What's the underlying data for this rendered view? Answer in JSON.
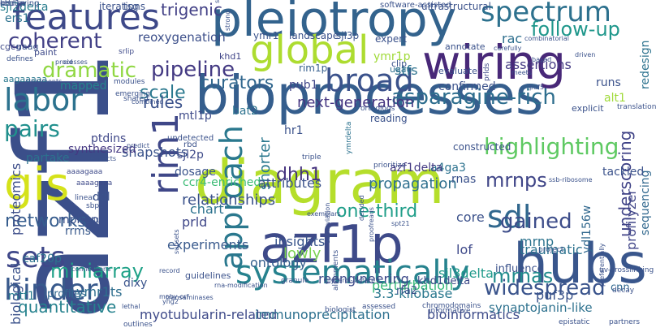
{
  "words": [
    {
      "text": "azf1",
      "color": "#3b4f8a",
      "vertical": true
    },
    {
      "text": "bioprocesses",
      "color": "#355e8d",
      "vertical": false
    },
    {
      "text": "diagram",
      "color": "#b5de2b",
      "vertical": false
    },
    {
      "text": "wiring",
      "color": "#482878",
      "vertical": false
    },
    {
      "text": "pleiotropy",
      "color": "#33638d",
      "vertical": false
    },
    {
      "text": "hubs",
      "color": "#39568c",
      "vertical": false
    },
    {
      "text": "azf1p",
      "color": "#3e4a89",
      "vertical": false
    },
    {
      "text": "systematically",
      "color": "#26828e",
      "vertical": false
    },
    {
      "text": "gis",
      "color": "#d5e21a",
      "vertical": false
    },
    {
      "text": "global",
      "color": "#addc30",
      "vertical": false
    },
    {
      "text": "features",
      "color": "#3e4989",
      "vertical": false
    },
    {
      "text": "spectrum",
      "color": "#2d718e",
      "vertical": false
    },
    {
      "text": "sets",
      "color": "#3f4889",
      "vertical": false
    },
    {
      "text": "broad",
      "color": "#3b528b",
      "vertical": false
    },
    {
      "text": "hinder",
      "color": "#38598c",
      "vertical": false
    },
    {
      "text": "labor",
      "color": "#2c728e",
      "vertical": false
    },
    {
      "text": "sdl",
      "color": "#31688e",
      "vertical": false
    },
    {
      "text": "approach",
      "color": "#2a788e",
      "vertical": true
    },
    {
      "text": "rim1",
      "color": "#3f4788",
      "vertical": true
    },
    {
      "text": "pairs",
      "color": "#21908d",
      "vertical": false
    },
    {
      "text": "coherent",
      "color": "#424086",
      "vertical": false
    },
    {
      "text": "dramatic",
      "color": "#90d743",
      "vertical": false
    },
    {
      "text": "highlighting",
      "color": "#5ec962",
      "vertical": false
    },
    {
      "text": "asparagine-rich",
      "color": "#2e6e8e",
      "vertical": false
    },
    {
      "text": "follow-up",
      "color": "#1f978b",
      "vertical": false
    },
    {
      "text": "pipeline",
      "color": "#443a83",
      "vertical": false
    },
    {
      "text": "networks",
      "color": "#365c8d",
      "vertical": false
    },
    {
      "text": "miniarray",
      "color": "#1fa187",
      "vertical": false
    },
    {
      "text": "quantitative",
      "color": "#26828e",
      "vertical": false
    },
    {
      "text": "mrnas",
      "color": "#228c8d",
      "vertical": false
    },
    {
      "text": "widespread",
      "color": "#3a548c",
      "vertical": false
    },
    {
      "text": "gained",
      "color": "#3d4d8a",
      "vertical": false
    },
    {
      "text": "curators",
      "color": "#31678e",
      "vertical": false
    },
    {
      "text": "scale",
      "color": "#2a788e",
      "vertical": false
    },
    {
      "text": "one-third",
      "color": "#1f9e89",
      "vertical": false
    },
    {
      "text": "mrnps",
      "color": "#404688",
      "vertical": false
    },
    {
      "text": "dhh1",
      "color": "#46337f",
      "vertical": false
    },
    {
      "text": "rules",
      "color": "#3b528b",
      "vertical": false
    },
    {
      "text": "next-generation",
      "color": "#453581",
      "vertical": false
    },
    {
      "text": "trigenic",
      "color": "#424086",
      "vertical": false
    },
    {
      "text": "sjl2delta",
      "color": "#287d8e",
      "vertical": false
    },
    {
      "text": "ers1",
      "color": "#2c718e",
      "vertical": false
    },
    {
      "text": "reoxygenation",
      "color": "#3c4f8a",
      "vertical": false
    },
    {
      "text": "myotubularin-related",
      "color": "#3e4a89",
      "vertical": false
    },
    {
      "text": "immunoprecipitation",
      "color": "#2d708e",
      "vertical": false
    },
    {
      "text": "bioinformatics",
      "color": "#3e4c8a",
      "vertical": false
    },
    {
      "text": "synaptojanin-like",
      "color": "#2d718e",
      "vertical": false
    },
    {
      "text": "perturbation",
      "color": "#35b779",
      "vertical": false
    },
    {
      "text": "3.3-kilobase",
      "color": "#2a788e",
      "vertical": false
    },
    {
      "text": "reengineering",
      "color": "#3e4a89",
      "vertical": false
    },
    {
      "text": "relationships",
      "color": "#3b528b",
      "vertical": false
    },
    {
      "text": "experiments",
      "color": "#38598c",
      "vertical": false
    },
    {
      "text": "propagation",
      "color": "#2e6f8e",
      "vertical": false
    },
    {
      "text": "insights",
      "color": "#39558c",
      "vertical": false
    },
    {
      "text": "ontology",
      "color": "#355f8d",
      "vertical": false
    },
    {
      "text": "shorter",
      "color": "#2a788e",
      "vertical": true
    },
    {
      "text": "lowly",
      "color": "#7ad151",
      "vertical": false
    },
    {
      "text": "core",
      "color": "#3b518b",
      "vertical": false
    },
    {
      "text": "lof",
      "color": "#3e4989",
      "vertical": false
    },
    {
      "text": "traumatic",
      "color": "#2c728e",
      "vertical": false
    },
    {
      "text": "mrnp",
      "color": "#2c738e",
      "vertical": false
    },
    {
      "text": "underscoring",
      "color": "#404387",
      "vertical": true
    },
    {
      "text": "ccr4-enriched",
      "color": "#3bbb75",
      "vertical": false
    },
    {
      "text": "dosage",
      "color": "#3a538b",
      "vertical": false
    },
    {
      "text": "snapshots",
      "color": "#3a538b",
      "vertical": false
    },
    {
      "text": "partake",
      "color": "#2c728e",
      "vertical": false
    },
    {
      "text": "synthesized",
      "color": "#453882",
      "vertical": false
    },
    {
      "text": "ptdins",
      "color": "#3f4788",
      "vertical": false
    },
    {
      "text": "mapped",
      "color": "#25848e",
      "vertical": false
    },
    {
      "text": "attributes",
      "color": "#3b528b",
      "vertical": false
    },
    {
      "text": "a4ga3",
      "color": "#2c728e",
      "vertical": false
    },
    {
      "text": "azf1delta",
      "color": "#443a83",
      "vertical": false
    },
    {
      "text": "ymr1ts",
      "color": "#2e6e8e",
      "vertical": false
    },
    {
      "text": "mtf1",
      "color": "#287c8e",
      "vertical": false
    },
    {
      "text": "caf20p",
      "color": "#2c738e",
      "vertical": false
    },
    {
      "text": "mph1p",
      "color": "#3b518b",
      "vertical": false
    },
    {
      "text": "rrms",
      "color": "#38598c",
      "vertical": false
    },
    {
      "text": "proteomics",
      "color": "#3d4e8a",
      "vertical": true
    },
    {
      "text": "biological",
      "color": "#3b528b",
      "vertical": true
    },
    {
      "text": "profiles",
      "color": "#31688e",
      "vertical": false
    },
    {
      "text": "sjl3delta",
      "color": "#1f9a8a",
      "vertical": false
    },
    {
      "text": "puf3p",
      "color": "#3a538b",
      "vertical": false
    },
    {
      "text": "cnn",
      "color": "#31688e",
      "vertical": false
    },
    {
      "text": "rfa2",
      "color": "#3b528b",
      "vertical": false
    },
    {
      "text": "khd1delta",
      "color": "#3e4a89",
      "vertical": false
    },
    {
      "text": "ydl156w",
      "color": "#31688e",
      "vertical": true
    },
    {
      "text": "influence",
      "color": "#3b528b",
      "vertical": false
    },
    {
      "text": "profilyzer",
      "color": "#404588",
      "vertical": true
    },
    {
      "text": "redesign",
      "color": "#2c728e",
      "vertical": true
    },
    {
      "text": "sequencing",
      "color": "#31688e",
      "vertical": true
    },
    {
      "text": "rac",
      "color": "#2e6f8e",
      "vertical": false
    },
    {
      "text": "assertions",
      "color": "#443a83",
      "vertical": false
    },
    {
      "text": "runs",
      "color": "#3b528b",
      "vertical": false
    },
    {
      "text": "alt1",
      "color": "#a0da39",
      "vertical": false
    },
    {
      "text": "stfs",
      "color": "#2c728e",
      "vertical": false
    },
    {
      "text": "rnas",
      "color": "#3b528b",
      "vertical": false
    },
    {
      "text": "tackled",
      "color": "#3b528b",
      "vertical": false
    },
    {
      "text": "chart",
      "color": "#2c728e",
      "vertical": false
    },
    {
      "text": "prld",
      "color": "#3f4788",
      "vertical": false
    },
    {
      "text": "dixy",
      "color": "#3a548c",
      "vertical": false
    },
    {
      "text": "ddl",
      "color": "#3b528b",
      "vertical": false
    },
    {
      "text": "sjl2p",
      "color": "#3e4a89",
      "vertical": false
    },
    {
      "text": "mtl1p",
      "color": "#3e4a89",
      "vertical": false
    },
    {
      "text": "bat2",
      "color": "#2c728e",
      "vertical": false
    },
    {
      "text": "hr1",
      "color": "#3b528b",
      "vertical": false
    },
    {
      "text": "pub1",
      "color": "#404588",
      "vertical": false
    },
    {
      "text": "rim1p",
      "color": "#355e8d",
      "vertical": false
    },
    {
      "text": "ymr1p",
      "color": "#a0da39",
      "vertical": false
    },
    {
      "text": "ymr1",
      "color": "#3a548c",
      "vertical": false
    },
    {
      "text": "landscape",
      "color": "#3b528b",
      "vertical": false
    },
    {
      "text": "sjl3p",
      "color": "#3a548c",
      "vertical": false
    },
    {
      "text": "expert",
      "color": "#3b528b",
      "vertical": false
    },
    {
      "text": "tsg",
      "color": "#3b528b",
      "vertical": false
    },
    {
      "text": "iterations",
      "color": "#3b528b",
      "vertical": false
    },
    {
      "text": "cgcg",
      "color": "#3e4a89",
      "vertical": false
    },
    {
      "text": "uaag",
      "color": "#3a548c",
      "vertical": false
    },
    {
      "text": "paint",
      "color": "#3e4a89",
      "vertical": false
    },
    {
      "text": "aagaaaaa",
      "color": "#2a788e",
      "vertical": false
    },
    {
      "text": "srlip",
      "color": "#3e4a89",
      "vertical": false
    },
    {
      "text": "khd1",
      "color": "#404588",
      "vertical": false
    },
    {
      "text": "clip",
      "color": "#3b528b",
      "vertical": false
    },
    {
      "text": "uaau",
      "color": "#2e6f8e",
      "vertical": false
    },
    {
      "text": "ultrastructural",
      "color": "#3b528b",
      "vertical": false
    },
    {
      "text": "software-assisted",
      "color": "#3b528b",
      "vertical": false
    },
    {
      "text": "annotate",
      "color": "#3b528b",
      "vertical": false
    },
    {
      "text": "confirmed",
      "color": "#3b528b",
      "vertical": false
    },
    {
      "text": "prlds",
      "color": "#3e4a89",
      "vertical": true
    },
    {
      "text": "evaluate",
      "color": "#3b528b",
      "vertical": false
    },
    {
      "text": "combinatorial",
      "color": "#3b528b",
      "vertical": false
    },
    {
      "text": "based",
      "color": "#3b528b",
      "vertical": false
    },
    {
      "text": "puf5",
      "color": "#3b528b",
      "vertical": false
    },
    {
      "text": "explicit",
      "color": "#3b528b",
      "vertical": false
    },
    {
      "text": "translation",
      "color": "#3b528b",
      "vertical": false
    },
    {
      "text": "orthologs",
      "color": "#3b528b",
      "vertical": false
    },
    {
      "text": "reading",
      "color": "#3b528b",
      "vertical": false
    },
    {
      "text": "constructed",
      "color": "#3b528b",
      "vertical": false
    },
    {
      "text": "triple",
      "color": "#3b528b",
      "vertical": false
    },
    {
      "text": "ymrdelta",
      "color": "#2c728e",
      "vertical": true
    },
    {
      "text": "prioritize",
      "color": "#3b528b",
      "vertical": false
    },
    {
      "text": "undetected",
      "color": "#3b528b",
      "vertical": false
    },
    {
      "text": "rbd",
      "color": "#3b528b",
      "vertical": false
    },
    {
      "text": "aaaagaaa",
      "color": "#3e4a89",
      "vertical": false
    },
    {
      "text": "aaaagaaa",
      "color": "#3e4a89",
      "vertical": false
    },
    {
      "text": "linear",
      "color": "#3b528b",
      "vertical": false
    },
    {
      "text": "sbp1",
      "color": "#3b528b",
      "vertical": false
    },
    {
      "text": "srl1",
      "color": "#3b528b",
      "vertical": false
    },
    {
      "text": "guidelines",
      "color": "#3b528b",
      "vertical": false
    },
    {
      "text": "granule",
      "color": "#3b528b",
      "vertical": false
    },
    {
      "text": "glycerol-lactate",
      "color": "#3b528b",
      "vertical": false
    },
    {
      "text": "alignments",
      "color": "#3b528b",
      "vertical": true
    },
    {
      "text": "assessed",
      "color": "#3b528b",
      "vertical": false
    },
    {
      "text": "chromodomains",
      "color": "#3b528b",
      "vertical": false
    },
    {
      "text": "informative",
      "color": "#3b528b",
      "vertical": false
    },
    {
      "text": "biologist",
      "color": "#3b528b",
      "vertical": false
    },
    {
      "text": "project",
      "color": "#3b528b",
      "vertical": false
    },
    {
      "text": "uv-crosslinking",
      "color": "#3b528b",
      "vertical": false
    },
    {
      "text": "preferentially",
      "color": "#3b528b",
      "vertical": true
    },
    {
      "text": "decay",
      "color": "#3b528b",
      "vertical": false
    },
    {
      "text": "epistatic",
      "color": "#3b528b",
      "vertical": false
    },
    {
      "text": "partners",
      "color": "#3b528b",
      "vertical": false
    },
    {
      "text": "outlines",
      "color": "#3b528b",
      "vertical": false
    },
    {
      "text": "lethal",
      "color": "#3b528b",
      "vertical": false
    },
    {
      "text": "connections",
      "color": "#3b528b",
      "vertical": false
    },
    {
      "text": "defines",
      "color": "#3b528b",
      "vertical": false
    },
    {
      "text": "treatments",
      "color": "#3b528b",
      "vertical": false
    },
    {
      "text": "modules",
      "color": "#3b528b",
      "vertical": false
    },
    {
      "text": "emerging",
      "color": "#3b528b",
      "vertical": false
    },
    {
      "text": "shared",
      "color": "#3b528b",
      "vertical": false
    },
    {
      "text": "combined",
      "color": "#3b528b",
      "vertical": false
    },
    {
      "text": "redirects",
      "color": "#3b528b",
      "vertical": false
    },
    {
      "text": "predict",
      "color": "#3b528b",
      "vertical": false
    },
    {
      "text": "meets",
      "color": "#3b528b",
      "vertical": false
    },
    {
      "text": "ssb-ribosome",
      "color": "#3b528b",
      "vertical": false
    },
    {
      "text": "driven",
      "color": "#3b528b",
      "vertical": false
    },
    {
      "text": "synthetic",
      "color": "#3b528b",
      "vertical": true
    },
    {
      "text": "strong",
      "color": "#3b528b",
      "vertical": true
    },
    {
      "text": "carefully",
      "color": "#3b528b",
      "vertical": false
    },
    {
      "text": "cid",
      "color": "#3b528b",
      "vertical": false
    },
    {
      "text": "processes",
      "color": "#3b528b",
      "vertical": false
    },
    {
      "text": "decided",
      "color": "#3b528b",
      "vertical": true
    },
    {
      "text": "exemplars",
      "color": "#3b528b",
      "vertical": false
    },
    {
      "text": "spt21",
      "color": "#3b528b",
      "vertical": false
    },
    {
      "text": "record",
      "color": "#3b528b",
      "vertical": false
    },
    {
      "text": "proofreads",
      "color": "#3b528b",
      "vertical": true
    },
    {
      "text": "rna-modification",
      "color": "#3b528b",
      "vertical": false
    },
    {
      "text": "moby-orf",
      "color": "#3b528b",
      "vertical": false
    },
    {
      "text": "abbreviation",
      "color": "#3b528b",
      "vertical": true
    },
    {
      "text": "subsets",
      "color": "#3b528b",
      "vertical": true
    },
    {
      "text": "transaminases",
      "color": "#3b528b",
      "vertical": false
    },
    {
      "text": "yng2",
      "color": "#3b528b",
      "vertical": false
    },
    {
      "text": "retrieving",
      "color": "#3b528b",
      "vertical": false
    },
    {
      "text": "khd1p",
      "color": "#3b528b",
      "vertical": false
    },
    {
      "text": "oe",
      "color": "#3b528b",
      "vertical": false
    }
  ]
}
